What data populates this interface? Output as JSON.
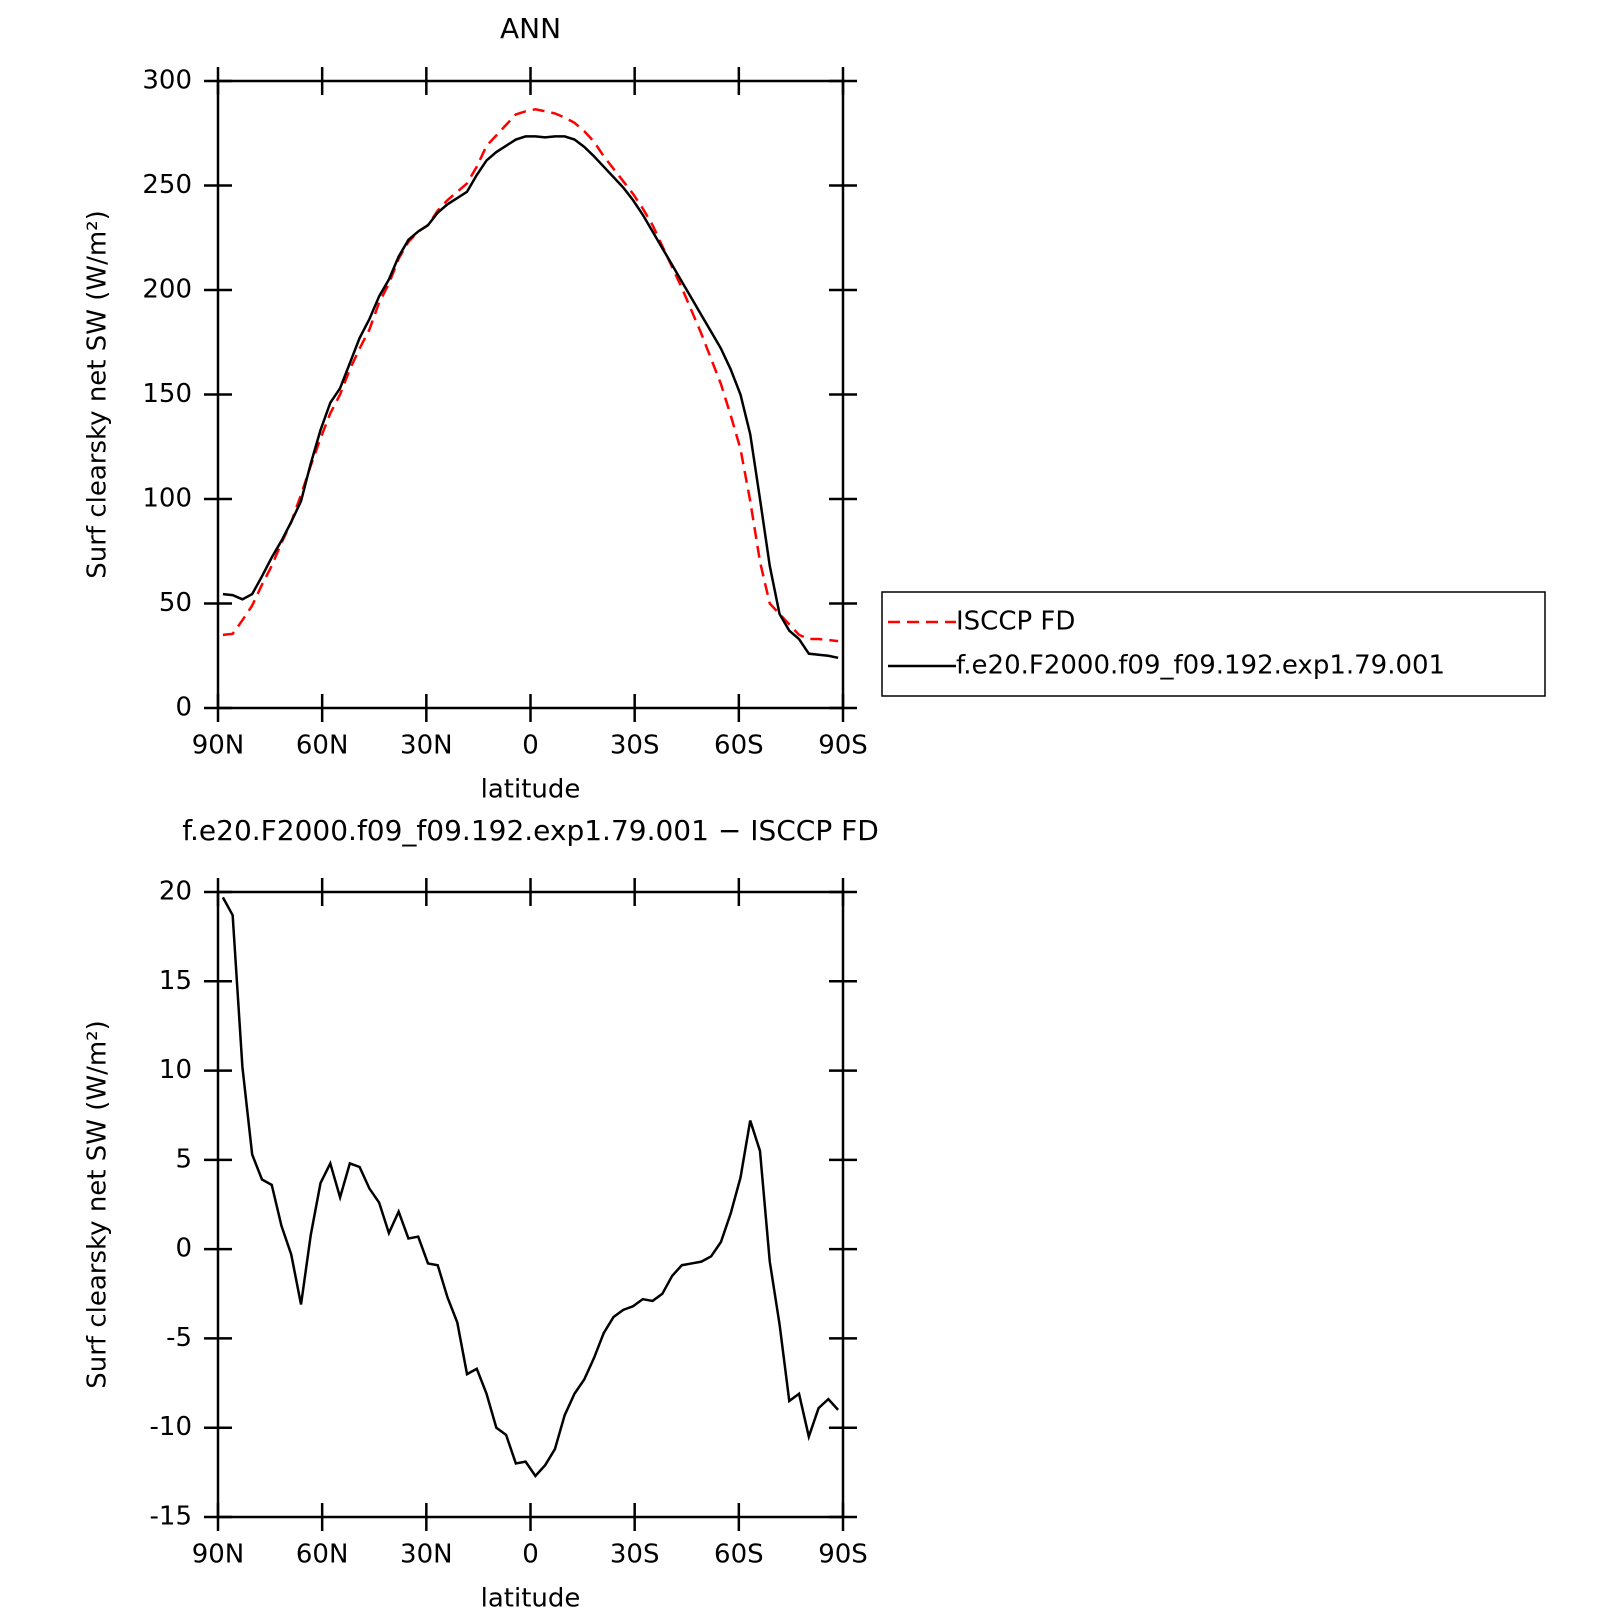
{
  "chart_data": [
    {
      "type": "line",
      "title": "ANN",
      "x_label": "latitude",
      "y_label": "Surf clearsky net SW (W/m²)",
      "xlim": [
        90,
        -90
      ],
      "xticks": [
        {
          "value": 90,
          "label": "90N"
        },
        {
          "value": 60,
          "label": "60N"
        },
        {
          "value": 30,
          "label": "30N"
        },
        0,
        {
          "value": -30,
          "label": "30S"
        },
        {
          "value": -60,
          "label": "60S"
        },
        {
          "value": -90,
          "label": "90S"
        }
      ],
      "ylim": [
        0,
        300
      ],
      "yticks": [
        0,
        50,
        100,
        150,
        200,
        250,
        300
      ],
      "legend": "right",
      "x": [
        88.59,
        85.78,
        82.97,
        80.16,
        77.34,
        74.53,
        71.72,
        68.91,
        66.09,
        63.28,
        60.47,
        57.66,
        54.84,
        52.03,
        49.22,
        46.41,
        43.59,
        40.78,
        37.97,
        35.16,
        32.34,
        29.53,
        26.72,
        23.91,
        21.09,
        18.28,
        15.47,
        12.66,
        9.84,
        7.03,
        4.22,
        1.41,
        -1.41,
        -4.22,
        -7.03,
        -9.84,
        -12.66,
        -15.47,
        -18.28,
        -21.09,
        -23.91,
        -26.72,
        -29.53,
        -32.34,
        -35.16,
        -37.97,
        -40.78,
        -43.59,
        -46.41,
        -49.22,
        -52.03,
        -54.84,
        -57.66,
        -60.47,
        -63.28,
        -66.09,
        -68.91,
        -71.72,
        -74.53,
        -77.34,
        -80.16,
        -82.97,
        -85.78,
        -88.59
      ],
      "series": [
        {
          "name": "ISCCP FD",
          "color": "#ff0000",
          "style": "dashed",
          "values": [
            35,
            35.5,
            42,
            49,
            59,
            68,
            79,
            89,
            102,
            116,
            129,
            141,
            150,
            162,
            172,
            181,
            194,
            203,
            215,
            223,
            228,
            231,
            238,
            243,
            247,
            251,
            259,
            269,
            274,
            279,
            284,
            285.5,
            286.5,
            285.5,
            284.5,
            282.5,
            280,
            276,
            271,
            264,
            258,
            252,
            246,
            239,
            231,
            221,
            211,
            201,
            190,
            179,
            167,
            155,
            140,
            124,
            99,
            70,
            50,
            45,
            40,
            35,
            33,
            33,
            32.5,
            32
          ]
        },
        {
          "name": "f.e20.F2000.f09_f09.192.exp1.79.001",
          "color": "#000000",
          "style": "solid",
          "values": [
            54.5,
            54,
            52,
            54.5,
            63,
            72,
            80,
            89,
            99,
            117,
            133,
            146,
            153,
            165,
            177,
            186,
            197,
            205,
            216,
            224,
            228,
            231,
            237,
            241,
            244,
            247,
            255,
            262,
            266,
            269,
            272,
            273.5,
            273.5,
            273,
            273.5,
            273.5,
            272,
            268.5,
            264,
            259,
            254,
            249,
            243,
            236,
            228,
            220,
            212,
            204,
            196,
            188,
            180,
            172,
            162,
            150,
            131,
            100,
            68,
            45,
            37,
            33,
            26,
            25.5,
            25,
            24
          ]
        }
      ]
    },
    {
      "type": "line",
      "title": "f.e20.F2000.f09_f09.192.exp1.79.001 − ISCCP FD",
      "x_label": "latitude",
      "y_label": "Surf clearsky net SW (W/m²)",
      "xlim": [
        90,
        -90
      ],
      "xticks": [
        {
          "value": 90,
          "label": "90N"
        },
        {
          "value": 60,
          "label": "60N"
        },
        {
          "value": 30,
          "label": "30N"
        },
        0,
        {
          "value": -30,
          "label": "30S"
        },
        {
          "value": -60,
          "label": "60S"
        },
        {
          "value": -90,
          "label": "90S"
        }
      ],
      "ylim": [
        -15,
        20
      ],
      "yticks": [
        -15,
        -10,
        -5,
        0,
        5,
        10,
        15,
        20
      ],
      "x": [
        88.59,
        85.78,
        82.97,
        80.16,
        77.34,
        74.53,
        71.72,
        68.91,
        66.09,
        63.28,
        60.47,
        57.66,
        54.84,
        52.03,
        49.22,
        46.41,
        43.59,
        40.78,
        37.97,
        35.16,
        32.34,
        29.53,
        26.72,
        23.91,
        21.09,
        18.28,
        15.47,
        12.66,
        9.84,
        7.03,
        4.22,
        1.41,
        -1.41,
        -4.22,
        -7.03,
        -9.84,
        -12.66,
        -15.47,
        -18.28,
        -21.09,
        -23.91,
        -26.72,
        -29.53,
        -32.34,
        -35.16,
        -37.97,
        -40.78,
        -43.59,
        -46.41,
        -49.22,
        -52.03,
        -54.84,
        -57.66,
        -60.47,
        -63.28,
        -66.09,
        -68.91,
        -71.72,
        -74.53,
        -77.34,
        -80.16,
        -82.97,
        -85.78,
        -88.59
      ],
      "series": [
        {
          "color": "#000000",
          "style": "solid",
          "values": [
            19.7,
            18.7,
            10.2,
            5.3,
            3.9,
            3.6,
            1.3,
            -0.3,
            -3.1,
            0.8,
            3.7,
            4.8,
            2.9,
            4.8,
            4.6,
            3.4,
            2.6,
            0.9,
            2.1,
            0.6,
            0.7,
            -0.8,
            -0.9,
            -2.7,
            -4.1,
            -7.0,
            -6.7,
            -8.1,
            -10.0,
            -10.4,
            -12.0,
            -11.9,
            -12.7,
            -12.1,
            -11.2,
            -9.3,
            -8.1,
            -7.3,
            -6.1,
            -4.7,
            -3.8,
            -3.4,
            -3.2,
            -2.8,
            -2.9,
            -2.5,
            -1.5,
            -0.9,
            -0.8,
            -0.7,
            -0.4,
            0.4,
            2.0,
            4.0,
            7.2,
            5.5,
            -0.7,
            -4.2,
            -8.5,
            -8.1,
            -10.5,
            -8.9,
            -8.4,
            -9.0
          ]
        }
      ]
    }
  ]
}
